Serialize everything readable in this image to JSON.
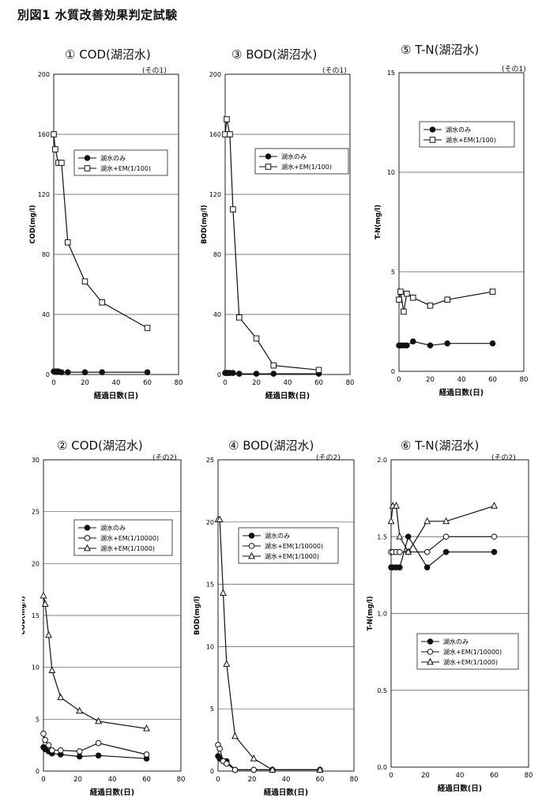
{
  "page_title": "別図1  水質改善効果判定試験",
  "chart_data": [
    {
      "id": "p1",
      "type": "line",
      "title": "①  COD(湖沼水)",
      "subtitle": "(その1)",
      "xlabel": "経過日数(日)",
      "ylabel": "COD(mg/l)",
      "xlim": [
        0,
        80
      ],
      "ylim": [
        0,
        200
      ],
      "xticks": [
        "0",
        "20",
        "40",
        "60",
        "80"
      ],
      "yticks": [
        "0",
        "40",
        "80",
        "120",
        "160",
        "200"
      ],
      "grid": "horizontal",
      "legend": "upper-right",
      "series": [
        {
          "name": "湖水のみ",
          "marker": "filled-circle",
          "x": [
            0,
            1,
            2,
            3,
            5,
            9,
            20,
            31,
            60
          ],
          "y": [
            2,
            2,
            2,
            2,
            1.5,
            1.5,
            1.5,
            1.5,
            1.5
          ]
        },
        {
          "name": "湖水+EM(1/100)",
          "marker": "open-square",
          "x": [
            0,
            1,
            3,
            5,
            9,
            20,
            31,
            60
          ],
          "y": [
            160,
            150,
            141,
            141,
            88,
            62,
            48,
            31
          ]
        }
      ]
    },
    {
      "id": "p3",
      "type": "line",
      "title": "③  BOD(湖沼水)",
      "subtitle": "(その1)",
      "xlabel": "経過日数(日)",
      "ylabel": "BOD(mg/l)",
      "xlim": [
        0,
        80
      ],
      "ylim": [
        0,
        200
      ],
      "xticks": [
        "0",
        "20",
        "40",
        "60",
        "80"
      ],
      "yticks": [
        "0",
        "40",
        "80",
        "120",
        "160",
        "200"
      ],
      "grid": "horizontal",
      "legend": "upper-right",
      "series": [
        {
          "name": "湖水のみ",
          "marker": "filled-circle",
          "x": [
            0,
            1,
            2,
            3,
            5,
            9,
            20,
            31,
            60
          ],
          "y": [
            1,
            1,
            1,
            1,
            1,
            0.5,
            0.5,
            0.5,
            0.5
          ]
        },
        {
          "name": "湖水+EM(1/100)",
          "marker": "open-square",
          "x": [
            0,
            1,
            3,
            5,
            9,
            20,
            31,
            60
          ],
          "y": [
            160,
            170,
            160,
            110,
            38,
            24,
            6,
            3
          ]
        }
      ]
    },
    {
      "id": "p5",
      "type": "line",
      "title": "⑤  T-N(湖沼水)",
      "subtitle": "(その1)",
      "xlabel": "経過日数(日)",
      "ylabel": "T-N(mg/l)",
      "xlim": [
        0,
        80
      ],
      "ylim": [
        0,
        15
      ],
      "xticks": [
        "0",
        "20",
        "40",
        "60",
        "80"
      ],
      "yticks": [
        "0",
        "5",
        "10",
        "15"
      ],
      "grid": "horizontal",
      "legend": "upper-right",
      "series": [
        {
          "name": "湖水のみ",
          "marker": "filled-circle",
          "x": [
            0,
            1,
            3,
            5,
            9,
            20,
            31,
            60
          ],
          "y": [
            1.3,
            1.3,
            1.3,
            1.3,
            1.5,
            1.3,
            1.4,
            1.4
          ]
        },
        {
          "name": "湖水+EM(1/100)",
          "marker": "open-square",
          "x": [
            0,
            1,
            3,
            5,
            9,
            20,
            31,
            60
          ],
          "y": [
            3.6,
            4.0,
            3.0,
            3.9,
            3.7,
            3.3,
            3.6,
            4.0
          ]
        }
      ]
    },
    {
      "id": "p2",
      "type": "line",
      "title": "②  COD(湖沼水)",
      "subtitle": "(その2)",
      "xlabel": "経過日数(日)",
      "ylabel": "COD(mg/l)",
      "xlim": [
        0,
        80
      ],
      "ylim": [
        0,
        30
      ],
      "xticks": [
        "0",
        "20",
        "40",
        "60",
        "80"
      ],
      "yticks": [
        "0",
        "5",
        "10",
        "15",
        "20",
        "25",
        "30"
      ],
      "grid": "horizontal",
      "legend": "upper-right",
      "series": [
        {
          "name": "湖水のみ",
          "marker": "filled-circle",
          "x": [
            0,
            1,
            3,
            5,
            10,
            21,
            32,
            60
          ],
          "y": [
            2.3,
            2.1,
            1.9,
            1.7,
            1.6,
            1.4,
            1.5,
            1.2
          ]
        },
        {
          "name": "湖水+EM(1/10000)",
          "marker": "open-circle",
          "x": [
            0,
            1,
            3,
            5,
            10,
            21,
            32,
            60
          ],
          "y": [
            3.6,
            3.0,
            2.5,
            2.0,
            2.0,
            1.9,
            2.7,
            1.6
          ]
        },
        {
          "name": "湖水+EM(1/1000)",
          "marker": "open-triangle",
          "x": [
            0,
            1,
            3,
            5,
            10,
            21,
            32,
            60
          ],
          "y": [
            16.9,
            16.1,
            13.1,
            9.7,
            7.1,
            5.8,
            4.8,
            4.1
          ]
        }
      ]
    },
    {
      "id": "p4",
      "type": "line",
      "title": "④  BOD(湖沼水)",
      "subtitle": "(その2)",
      "xlabel": "経過日数(日)",
      "ylabel": "BOD(mg/l)",
      "xlim": [
        0,
        80
      ],
      "ylim": [
        0,
        25
      ],
      "xticks": [
        "0",
        "20",
        "40",
        "60",
        "80"
      ],
      "yticks": [
        "0",
        "5",
        "10",
        "15",
        "20",
        "25"
      ],
      "grid": "horizontal",
      "legend": "upper-right",
      "series": [
        {
          "name": "湖水のみ",
          "marker": "filled-circle",
          "x": [
            0,
            1,
            3,
            5,
            10,
            21,
            32,
            60
          ],
          "y": [
            1.2,
            1.0,
            0.8,
            0.8,
            0.1,
            0.1,
            0.1,
            0.1
          ]
        },
        {
          "name": "湖水+EM(1/10000)",
          "marker": "open-circle",
          "x": [
            0,
            1,
            3,
            5,
            10,
            21,
            32,
            60
          ],
          "y": [
            2.1,
            1.8,
            0.8,
            0.6,
            0.1,
            0.1,
            0.1,
            0.1
          ]
        },
        {
          "name": "湖水+EM(1/1000)",
          "marker": "open-triangle",
          "x": [
            0,
            1,
            3,
            5,
            10,
            21,
            32,
            60
          ],
          "y": [
            20.2,
            20.2,
            14.3,
            8.6,
            2.8,
            1.0,
            0.1,
            0.1
          ]
        }
      ]
    },
    {
      "id": "p6",
      "type": "line",
      "title": "⑥  T-N(湖沼水)",
      "subtitle": "(その2)",
      "xlabel": "経過日数(日)",
      "ylabel": "T-N(mg/l)",
      "xlim": [
        0,
        80
      ],
      "ylim": [
        0,
        2.0
      ],
      "xticks": [
        "0",
        "20",
        "40",
        "60",
        "80"
      ],
      "yticks": [
        "0.0",
        "0.5",
        "1.0",
        "1.5",
        "2.0"
      ],
      "grid": "horizontal",
      "legend": "lower-right",
      "series": [
        {
          "name": "湖水のみ",
          "marker": "filled-circle",
          "x": [
            0,
            1,
            3,
            5,
            10,
            21,
            32,
            60
          ],
          "y": [
            1.3,
            1.3,
            1.3,
            1.3,
            1.5,
            1.3,
            1.4,
            1.4
          ]
        },
        {
          "name": "湖水+EM(1/10000)",
          "marker": "open-circle",
          "x": [
            0,
            1,
            3,
            5,
            10,
            21,
            32,
            60
          ],
          "y": [
            1.4,
            1.4,
            1.4,
            1.4,
            1.4,
            1.4,
            1.5,
            1.5
          ]
        },
        {
          "name": "湖水+EM(1/1000)",
          "marker": "open-triangle",
          "x": [
            0,
            1,
            3,
            5,
            10,
            21,
            32,
            60
          ],
          "y": [
            1.6,
            1.7,
            1.7,
            1.5,
            1.4,
            1.6,
            1.6,
            1.7
          ]
        }
      ]
    }
  ]
}
